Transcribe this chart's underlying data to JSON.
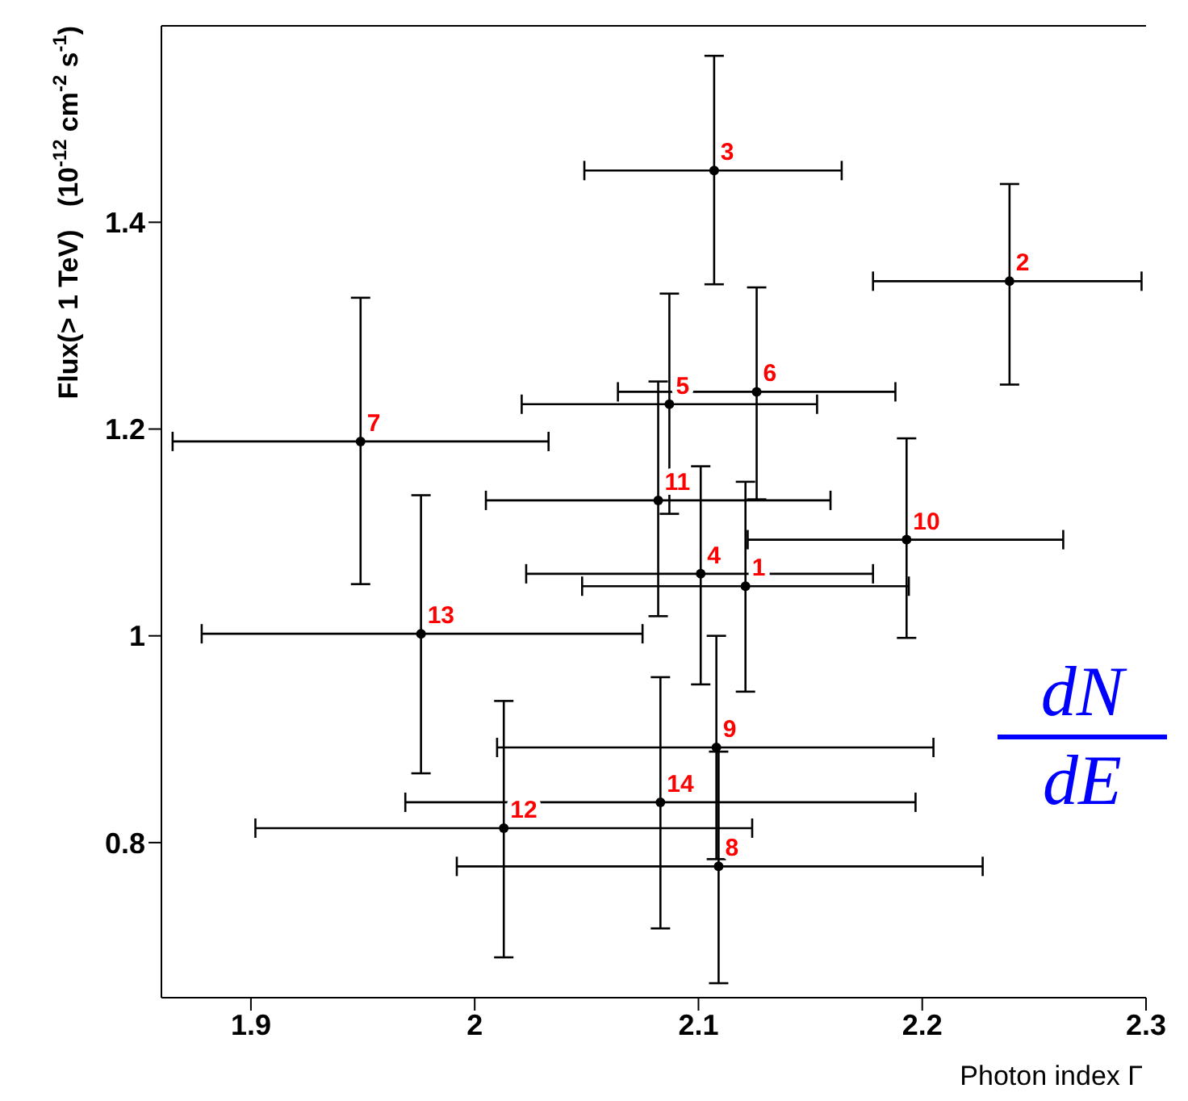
{
  "chart_data": {
    "type": "scatter",
    "xlabel": "Photon index Γ",
    "ylabel": "Flux(> 1 TeV)   (10$^{-12}$ cm$^{-2}$ s$^{-1}$)",
    "x": [
      2.121,
      2.239,
      2.107,
      2.101,
      2.087,
      2.126,
      1.949,
      2.109,
      2.108,
      2.193,
      2.082,
      2.013,
      1.976,
      2.083
    ],
    "series": [
      {
        "color": "#000000",
        "values": [
          1.048,
          1.343,
          1.45,
          1.06,
          1.224,
          1.236,
          1.188,
          0.777,
          0.892,
          1.093,
          1.131,
          0.814,
          1.002,
          0.839
        ],
        "errors": [
          [
            0.946,
            1.149
          ],
          [
            1.243,
            1.437
          ],
          [
            1.34,
            1.561
          ],
          [
            0.953,
            1.164
          ],
          [
            1.118,
            1.331
          ],
          [
            1.132,
            1.337
          ],
          [
            1.05,
            1.327
          ],
          [
            0.664,
            0.888
          ],
          [
            0.784,
            1.0
          ],
          [
            0.998,
            1.191
          ],
          [
            1.019,
            1.246
          ],
          [
            0.689,
            0.937
          ],
          [
            0.867,
            1.136
          ],
          [
            0.717,
            0.96
          ]
        ],
        "xerrors": [
          [
            2.048,
            2.194
          ],
          [
            2.178,
            2.298
          ],
          [
            2.049,
            2.164
          ],
          [
            2.023,
            2.178
          ],
          [
            2.021,
            2.153
          ],
          [
            2.064,
            2.188
          ],
          [
            1.865,
            2.033
          ],
          [
            1.992,
            2.227
          ],
          [
            2.01,
            2.205
          ],
          [
            2.122,
            2.263
          ],
          [
            2.005,
            2.159
          ],
          [
            1.902,
            2.124
          ],
          [
            1.878,
            2.075
          ],
          [
            1.969,
            2.197
          ]
        ]
      }
    ],
    "xlim": [
      1.86,
      2.3
    ],
    "xticks": [
      1.9,
      2,
      2.1,
      2.2,
      2.3
    ],
    "ylim": [
      0.65,
      1.59
    ],
    "yticks": [
      0.8,
      1,
      1.2,
      1.4
    ],
    "marker": "circle",
    "grid": false,
    "legend": false,
    "annotations": [
      {
        "text": "1",
        "x": 2.121,
        "y": 1.048
      },
      {
        "text": "2",
        "x": 2.239,
        "y": 1.343
      },
      {
        "text": "3",
        "x": 2.107,
        "y": 1.45
      },
      {
        "text": "4",
        "x": 2.101,
        "y": 1.06
      },
      {
        "text": "5",
        "x": 2.087,
        "y": 1.224
      },
      {
        "text": "6",
        "x": 2.126,
        "y": 1.236
      },
      {
        "text": "7",
        "x": 1.949,
        "y": 1.188
      },
      {
        "text": "8",
        "x": 2.109,
        "y": 0.777
      },
      {
        "text": "9",
        "x": 2.108,
        "y": 0.892
      },
      {
        "text": "10",
        "x": 2.193,
        "y": 1.093
      },
      {
        "text": "11",
        "x": 2.082,
        "y": 1.131
      },
      {
        "text": "12",
        "x": 2.013,
        "y": 0.814
      },
      {
        "text": "13",
        "x": 1.976,
        "y": 1.002
      },
      {
        "text": "14",
        "x": 2.083,
        "y": 0.839
      },
      "dN",
      "dE"
    ]
  }
}
